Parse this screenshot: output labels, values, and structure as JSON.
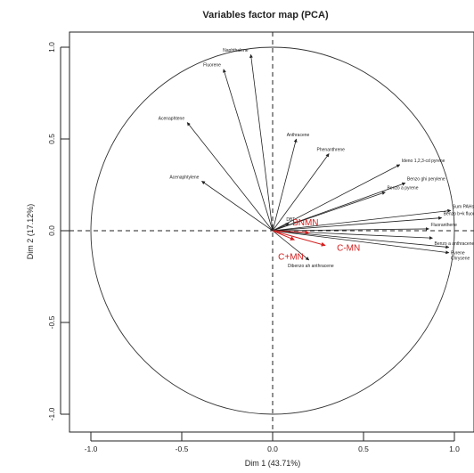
{
  "chart_data": {
    "type": "scatter",
    "title": "Variables factor map (PCA)",
    "xlabel": "Dim 1 (43.71%)",
    "ylabel": "Dim 2 (17.12%)",
    "xlim": [
      -1.1,
      1.1
    ],
    "ylim": [
      -1.1,
      1.1
    ],
    "x_ticks": [
      "-1.0",
      "-0.5",
      "0.0",
      "0.5",
      "1.0"
    ],
    "y_ticks": [
      "-1.0",
      "-0.5",
      "0.0",
      "0.5",
      "1.0"
    ],
    "tick_values": [
      -1.0,
      -0.5,
      0.0,
      0.5,
      1.0
    ],
    "grid": false,
    "correlation_circle": true,
    "colors": {
      "variables": "#222222",
      "highlight": "#d42020"
    },
    "variables": [
      {
        "name": "Naphthalene",
        "x": -0.12,
        "y": 0.96
      },
      {
        "name": "Fluorene",
        "x": -0.27,
        "y": 0.88
      },
      {
        "name": "Acenaphtene",
        "x": -0.47,
        "y": 0.59
      },
      {
        "name": "Acenaphtylene",
        "x": -0.39,
        "y": 0.27
      },
      {
        "name": "Anthracene",
        "x": 0.13,
        "y": 0.5
      },
      {
        "name": "Phenanthrene",
        "x": 0.31,
        "y": 0.42
      },
      {
        "name": "Ideno 1,2,3-cd pyrene",
        "x": 0.7,
        "y": 0.36
      },
      {
        "name": "Benzo ghi perylene",
        "x": 0.73,
        "y": 0.26
      },
      {
        "name": "Benzo a pyrene",
        "x": 0.62,
        "y": 0.21
      },
      {
        "name": "Sum PAHs",
        "x": 0.98,
        "y": 0.11
      },
      {
        "name": "Benzo b+k fluoranthene",
        "x": 0.93,
        "y": 0.07
      },
      {
        "name": "Fluoranthene",
        "x": 0.86,
        "y": 0.01
      },
      {
        "name": "Benzo a anthracene",
        "x": 0.88,
        "y": -0.04
      },
      {
        "name": "Pyrene",
        "x": 0.97,
        "y": -0.09
      },
      {
        "name": "Chrysene",
        "x": 0.97,
        "y": -0.12
      },
      {
        "name": "Dibenzo ah anthracene",
        "x": 0.2,
        "y": -0.16
      },
      {
        "name": "DBT",
        "x": 0.09,
        "y": 0.04
      }
    ],
    "highlighted": [
      {
        "name": "BNMN",
        "x": 0.2,
        "y": -0.01
      },
      {
        "name": "C-MN",
        "x": 0.29,
        "y": -0.08
      },
      {
        "name": "C+MN",
        "x": 0.12,
        "y": -0.05
      }
    ]
  }
}
